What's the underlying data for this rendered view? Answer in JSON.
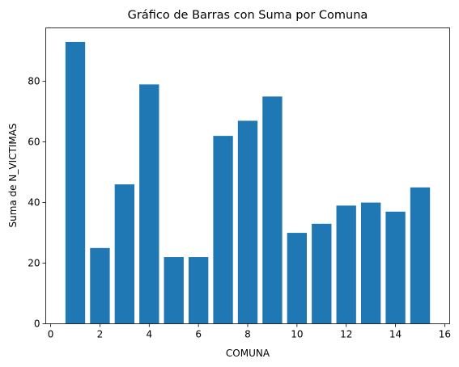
{
  "chart_data": {
    "type": "bar",
    "title": "Gráfico de Barras con Suma por Comuna",
    "xlabel": "COMUNA",
    "ylabel": "Suma de N_VICTIMAS",
    "x": [
      1,
      2,
      3,
      4,
      5,
      6,
      7,
      8,
      9,
      10,
      11,
      12,
      13,
      14,
      15
    ],
    "values": [
      93,
      25,
      46,
      79,
      22,
      22,
      62,
      67,
      75,
      30,
      33,
      39,
      40,
      37,
      45
    ],
    "xlim": [
      -0.2,
      16.2
    ],
    "ylim": [
      0,
      97.65
    ],
    "xticks": [
      0,
      2,
      4,
      6,
      8,
      10,
      12,
      14,
      16
    ],
    "yticks": [
      0,
      20,
      40,
      60,
      80
    ],
    "grid": false,
    "bar_color": "#1f77b4"
  }
}
